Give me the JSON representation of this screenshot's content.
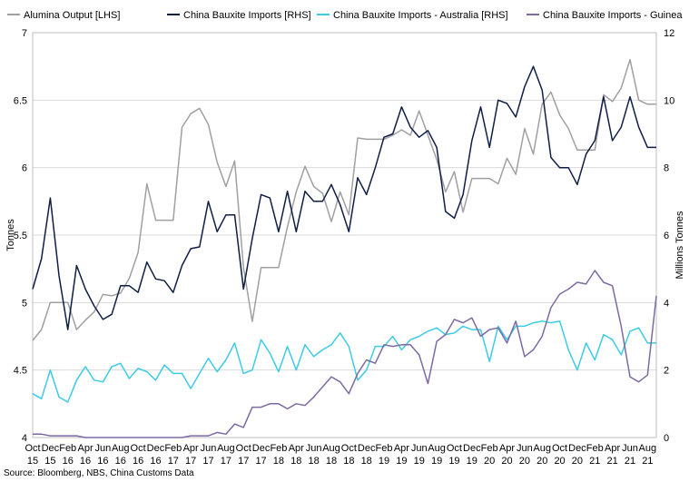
{
  "chart_data": {
    "type": "line",
    "source": "Source: Bloomberg, NBS, China Customs Data",
    "ylabel_left": "Tonnes",
    "ylabel_right": "Millions Tonnes",
    "y_left": {
      "min": 4,
      "max": 7,
      "step": 0.5,
      "ticks": [
        "4",
        "4.5",
        "5",
        "5.5",
        "6",
        "6.5",
        "7"
      ]
    },
    "y_right": {
      "min": 0,
      "max": 12,
      "step": 2,
      "ticks": [
        "0",
        "2",
        "4",
        "6",
        "8",
        "10",
        "12"
      ]
    },
    "x_tick_months": [
      "Oct",
      "Dec",
      "Feb",
      "Apr",
      "Jun",
      "Aug",
      "Oct",
      "Dec",
      "Feb",
      "Apr",
      "Jun",
      "Aug",
      "Oct",
      "Dec",
      "Feb",
      "Apr",
      "Jun",
      "Aug",
      "Oct",
      "Dec",
      "Feb",
      "Apr",
      "Jun",
      "Aug",
      "Oct",
      "Dec",
      "Feb",
      "Apr",
      "Jun",
      "Aug",
      "Oct",
      "Dec",
      "Feb",
      "Apr",
      "Jun",
      "Aug"
    ],
    "x_tick_years": [
      "15",
      "15",
      "16",
      "16",
      "16",
      "16",
      "16",
      "16",
      "17",
      "17",
      "17",
      "17",
      "17",
      "17",
      "18",
      "18",
      "18",
      "18",
      "18",
      "18",
      "19",
      "19",
      "19",
      "19",
      "19",
      "19",
      "20",
      "20",
      "20",
      "20",
      "20",
      "20",
      "21",
      "21",
      "21",
      "21"
    ],
    "legend_position": "top",
    "series": [
      {
        "name": "Alumina Output [LHS]",
        "axis": "left",
        "color": "#a0a0a0",
        "values": [
          4.72,
          4.8,
          5.0,
          5.0,
          5.0,
          4.8,
          4.87,
          4.93,
          5.06,
          5.05,
          5.07,
          5.18,
          5.37,
          5.88,
          5.61,
          5.61,
          5.61,
          6.3,
          6.4,
          6.44,
          6.32,
          6.04,
          5.86,
          6.05,
          5.26,
          4.86,
          5.26,
          5.26,
          5.26,
          5.56,
          5.82,
          6.01,
          5.86,
          5.81,
          5.6,
          5.82,
          5.65,
          6.22,
          6.21,
          6.21,
          6.21,
          6.24,
          6.28,
          6.24,
          6.42,
          6.24,
          6.06,
          5.82,
          5.97,
          5.67,
          5.92,
          5.92,
          5.92,
          5.88,
          6.07,
          5.95,
          6.29,
          6.1,
          6.47,
          6.56,
          6.39,
          6.29,
          6.13,
          6.13,
          6.13,
          6.54,
          6.49,
          6.59,
          6.8,
          6.5,
          6.47,
          6.47
        ]
      },
      {
        "name": "China Bauxite Imports [RHS]",
        "axis": "right",
        "color": "#0f1e45",
        "values": [
          4.4,
          5.3,
          7.1,
          4.8,
          3.2,
          5.1,
          4.4,
          3.9,
          3.5,
          3.65,
          4.5,
          4.5,
          4.3,
          5.2,
          4.7,
          4.65,
          4.3,
          5.1,
          5.6,
          5.65,
          7.0,
          6.1,
          6.6,
          6.6,
          4.4,
          5.9,
          7.2,
          7.1,
          6.1,
          7.3,
          6.1,
          7.3,
          7.0,
          7.0,
          7.5,
          6.9,
          6.1,
          7.7,
          7.2,
          8.0,
          8.9,
          9.0,
          9.8,
          9.2,
          8.9,
          9.1,
          8.6,
          6.7,
          6.5,
          7.2,
          8.8,
          9.8,
          8.6,
          10.0,
          9.9,
          9.5,
          10.4,
          11.0,
          10.3,
          8.3,
          8.0,
          8.0,
          7.5,
          8.4,
          8.8,
          10.1,
          8.8,
          9.2,
          10.1,
          9.2,
          8.6,
          8.6
        ]
      },
      {
        "name": "China Bauxite Imports - Australia [RHS]",
        "axis": "right",
        "color": "#3ccbe6",
        "values": [
          1.3,
          1.15,
          2.0,
          1.2,
          1.05,
          1.7,
          2.1,
          1.7,
          1.65,
          2.1,
          2.2,
          1.75,
          2.05,
          1.95,
          1.7,
          2.15,
          1.9,
          1.9,
          1.45,
          1.9,
          2.35,
          1.95,
          2.3,
          2.8,
          1.9,
          2.0,
          2.9,
          2.5,
          1.95,
          2.7,
          2.0,
          2.75,
          2.4,
          2.6,
          2.75,
          3.1,
          2.7,
          1.7,
          2.0,
          2.7,
          2.7,
          3.0,
          2.6,
          2.9,
          3.0,
          3.15,
          3.25,
          3.05,
          3.1,
          3.3,
          3.2,
          3.2,
          2.25,
          3.3,
          2.9,
          3.3,
          3.3,
          3.4,
          3.45,
          3.4,
          3.45,
          2.6,
          2.0,
          2.8,
          2.3,
          3.05,
          2.9,
          2.45,
          3.15,
          3.25,
          2.8,
          2.8
        ]
      },
      {
        "name": "China Bauxite Imports - Guinea",
        "axis": "right",
        "color": "#7d6aa3",
        "values": [
          0.1,
          0.1,
          0.05,
          0.05,
          0.05,
          0.05,
          0.0,
          0.0,
          0.0,
          0.0,
          0.0,
          0.0,
          0.0,
          0.0,
          0.0,
          0.0,
          0.0,
          0.0,
          0.05,
          0.05,
          0.05,
          0.15,
          0.1,
          0.4,
          0.3,
          0.9,
          0.9,
          1.0,
          1.0,
          0.85,
          1.0,
          0.95,
          1.2,
          1.5,
          1.8,
          1.65,
          1.3,
          1.9,
          2.3,
          2.2,
          2.75,
          2.7,
          2.75,
          2.75,
          2.45,
          1.6,
          2.85,
          3.05,
          3.5,
          3.4,
          3.55,
          3.0,
          3.2,
          3.25,
          2.8,
          3.45,
          2.4,
          2.6,
          3.0,
          3.85,
          4.25,
          4.4,
          4.6,
          4.55,
          4.95,
          4.6,
          4.5,
          3.3,
          1.8,
          1.65,
          1.85,
          4.2
        ]
      }
    ]
  }
}
